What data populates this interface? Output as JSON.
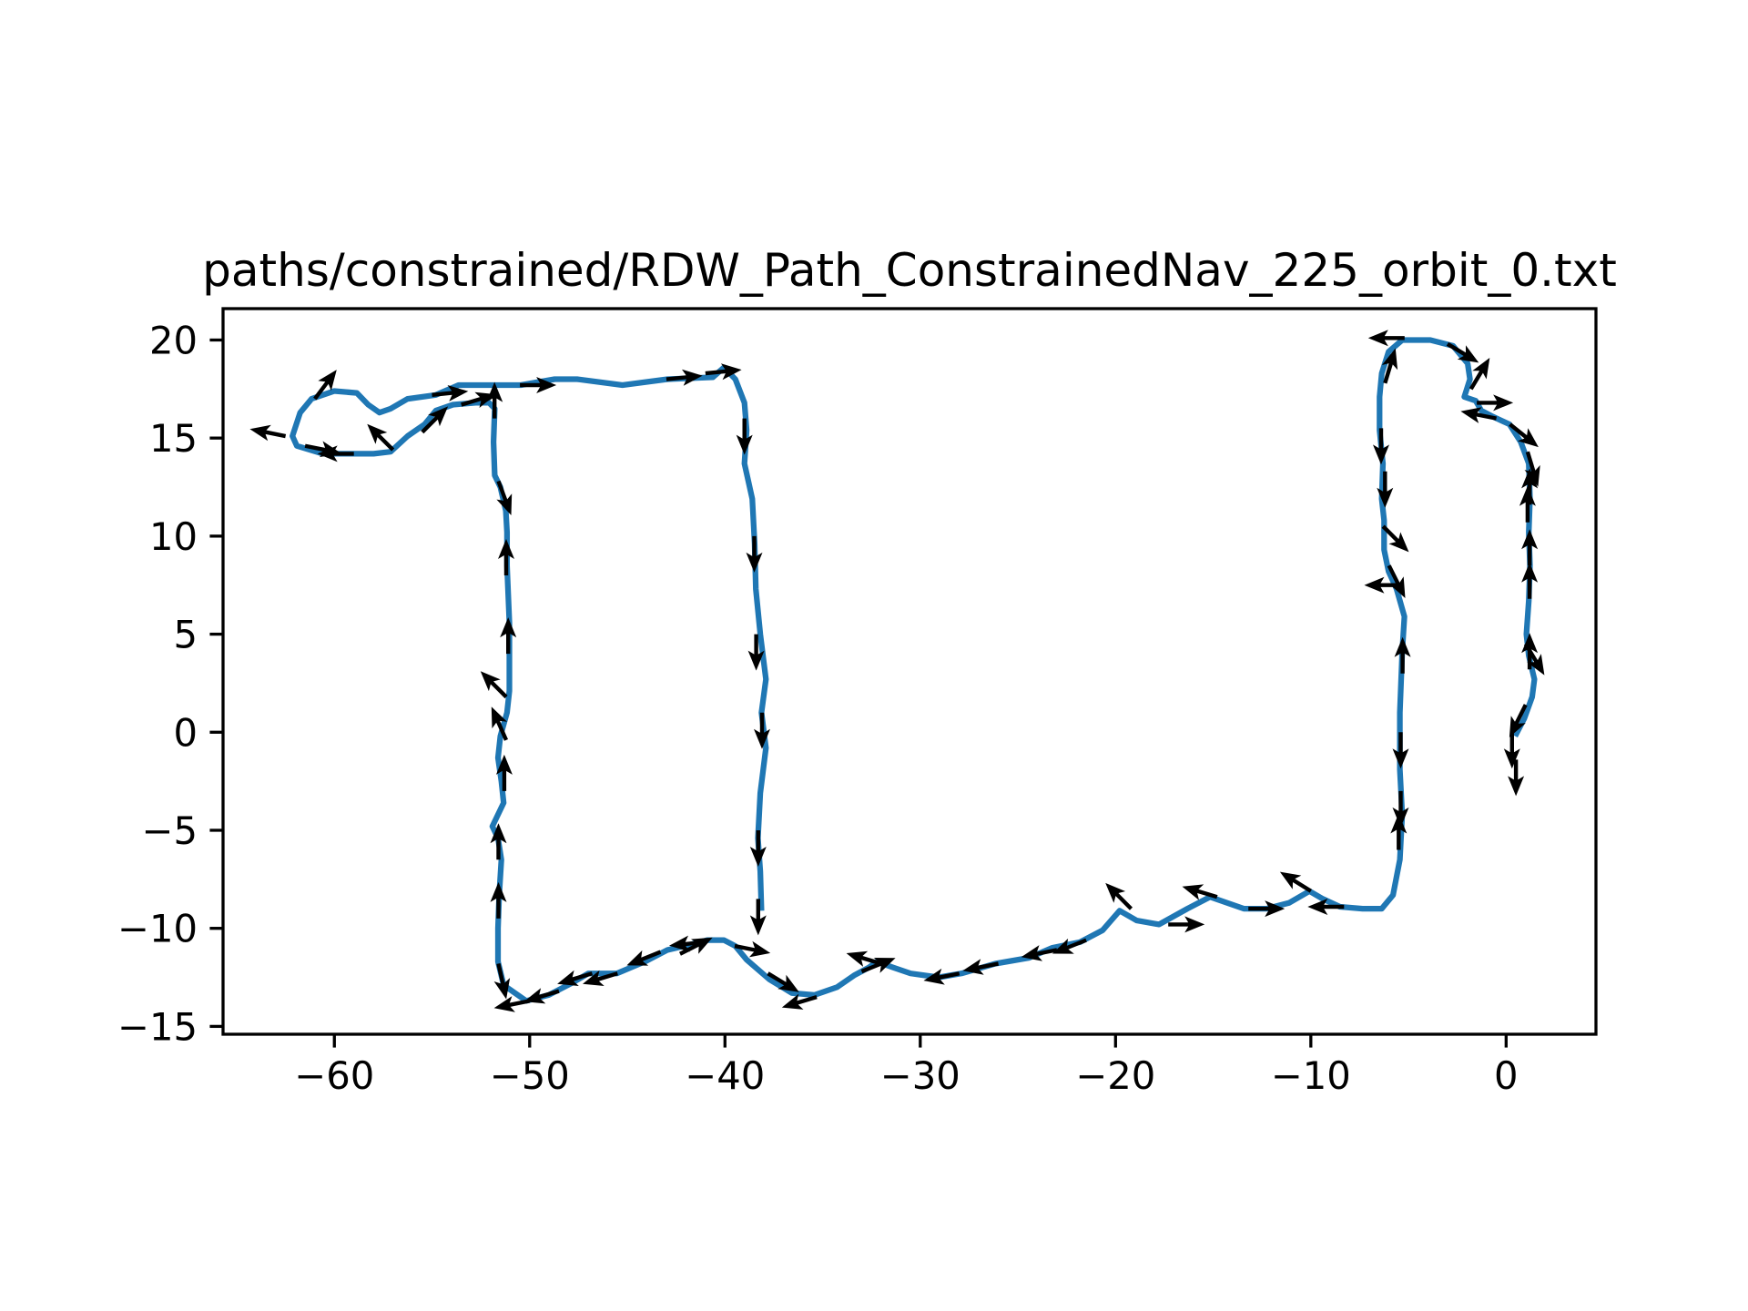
{
  "chart_data": {
    "type": "line",
    "title": "paths/constrained/RDW_Path_ConstrainedNav_225_orbit_0.txt",
    "xlim": [
      -65.7,
      4.6
    ],
    "ylim": [
      -15.4,
      21.6
    ],
    "xticks": [
      {
        "value": -60,
        "label": "−60"
      },
      {
        "value": -50,
        "label": "−50"
      },
      {
        "value": -40,
        "label": "−40"
      },
      {
        "value": -30,
        "label": "−30"
      },
      {
        "value": -20,
        "label": "−20"
      },
      {
        "value": -10,
        "label": "−10"
      },
      0
    ],
    "yticks": [
      {
        "value": -15,
        "label": "−15"
      },
      {
        "value": -10,
        "label": "−10"
      },
      {
        "value": -5,
        "label": "−5"
      },
      0,
      5,
      10,
      15,
      20
    ],
    "grid": false,
    "color": "#1f77b4",
    "x": [
      0.46,
      0.93,
      1.33,
      1.45,
      1.16,
      1.04,
      1.16,
      1.22,
      1.16,
      1.22,
      1.16,
      0.75,
      0.17,
      -0.69,
      -1.27,
      -1.56,
      -2.14,
      -1.85,
      -1.97,
      -2.72,
      -3.88,
      -5.32,
      -6.02,
      -6.37,
      -6.48,
      -6.48,
      -6.31,
      -6.37,
      -6.25,
      -6.25,
      -6.02,
      -5.61,
      -5.21,
      -5.32,
      -5.44,
      -5.44,
      -5.32,
      -5.44,
      -5.79,
      -6.37,
      -7.35,
      -8.51,
      -9.38,
      -10.07,
      -11.11,
      -12.27,
      -13.43,
      -14.29,
      -15.16,
      -16.32,
      -17.77,
      -18.92,
      -19.79,
      -20.66,
      -21.82,
      -23.26,
      -24.42,
      -26.16,
      -27.89,
      -29.05,
      -30.5,
      -31.37,
      -32.23,
      -32.64,
      -33.39,
      -34.26,
      -35.42,
      -36.57,
      -37.73,
      -38.89,
      -39.47,
      -40.05,
      -40.91,
      -42.07,
      -42.94,
      -44.1,
      -45.54,
      -46.99,
      -47.86,
      -49.02,
      -50.17,
      -51.33,
      -51.62,
      -51.62,
      -51.56,
      -51.45,
      -51.62,
      -51.91,
      -51.33,
      -51.45,
      -51.62,
      -51.5,
      -51.16,
      -51.04,
      -51.04,
      -51.04,
      -51.16,
      -51.16,
      -51.22,
      -51.5,
      -51.79,
      -51.85,
      -51.79,
      -52.08,
      -52.77,
      -53.93,
      -54.8,
      -55.38,
      -56.25,
      -57.12,
      -57.99,
      -59.14,
      -60.59,
      -61.92,
      -62.15,
      -61.75,
      -61.17,
      -60.01,
      -58.85,
      -58.27,
      -57.69,
      -57.12,
      -56.25,
      -54.8,
      -53.64,
      -50.46,
      -48.72,
      -47.57,
      -45.25,
      -42.94,
      -40.62,
      -40.05,
      -39.47,
      -39.0,
      -38.89,
      -39.0,
      -38.6,
      -38.48,
      -38.42,
      -38.19,
      -37.9,
      -38.13,
      -37.9,
      -38.19,
      -38.31,
      -38.19,
      -38.13
    ],
    "y": [
      -0.2,
      0.7,
      1.8,
      2.7,
      3.9,
      5.0,
      6.7,
      8.5,
      10.2,
      11.9,
      13.7,
      14.8,
      15.7,
      16.1,
      16.4,
      16.9,
      17.1,
      18.0,
      18.8,
      19.7,
      20.0,
      20.0,
      19.4,
      18.3,
      17.1,
      15.4,
      13.7,
      11.9,
      10.8,
      9.3,
      8.2,
      7.3,
      5.9,
      4.1,
      1.0,
      -1.9,
      -4.2,
      -6.5,
      -8.3,
      -9.0,
      -9.0,
      -8.9,
      -8.5,
      -8.1,
      -8.7,
      -9.0,
      -9.0,
      -8.7,
      -8.4,
      -9.0,
      -9.8,
      -9.6,
      -9.1,
      -10.1,
      -10.7,
      -11.0,
      -11.5,
      -11.8,
      -12.3,
      -12.5,
      -12.3,
      -12.0,
      -11.7,
      -12.0,
      -12.4,
      -13.0,
      -13.4,
      -13.3,
      -12.6,
      -11.6,
      -10.9,
      -10.6,
      -10.6,
      -10.9,
      -11.1,
      -11.7,
      -12.3,
      -12.3,
      -12.8,
      -13.4,
      -13.7,
      -12.9,
      -11.7,
      -10.0,
      -8.3,
      -6.5,
      -5.4,
      -4.8,
      -3.6,
      -2.5,
      -1.3,
      -0.2,
      1.0,
      2.1,
      3.9,
      5.6,
      8.5,
      10.2,
      11.3,
      12.5,
      13.1,
      14.8,
      16.5,
      16.8,
      16.8,
      16.7,
      16.4,
      15.7,
      15.1,
      14.3,
      14.2,
      14.2,
      14.2,
      14.6,
      15.1,
      16.3,
      17.0,
      17.4,
      17.3,
      16.7,
      16.3,
      16.5,
      17.0,
      17.2,
      17.7,
      17.7,
      18.0,
      18.0,
      17.7,
      18.0,
      18.1,
      18.6,
      18.0,
      16.8,
      15.4,
      13.7,
      11.9,
      9.6,
      7.3,
      5.0,
      2.7,
      1.0,
      -0.8,
      -3.1,
      -5.4,
      -7.1,
      -9.1
    ],
    "arrows": {
      "color": "#000000",
      "x": [
        -38.3,
        -38.3,
        -38.1,
        -38.4,
        -38.5,
        -39,
        -41,
        -43,
        -50.5,
        -55,
        -61,
        -62.5,
        -61.5,
        -59,
        -57,
        -55.5,
        -53.5,
        -51.8,
        -51.6,
        -51.2,
        -51.1,
        -51.2,
        -51.2,
        -51.3,
        -51.6,
        -51.6,
        -51.6,
        -50,
        -48.5,
        -46.8,
        -45.5,
        -43.3,
        -42.3,
        -41,
        -39.5,
        -37.8,
        -35.3,
        -33,
        -32,
        -28,
        -26,
        -23,
        -21.5,
        -19.2,
        -17.3,
        -14.8,
        -13.2,
        -10,
        -8.3,
        -5.5,
        -5.4,
        -5.4,
        -5.3,
        -5.4,
        -6,
        -6.3,
        -6.2,
        -6.4,
        -6.2,
        -5.2,
        -3,
        -1.8,
        -1.5,
        -0.5,
        0.2,
        1.1,
        1.2,
        1.1,
        1.2,
        1.2,
        1.0,
        1.2,
        1.0,
        0.3,
        0.5
      ],
      "y": [
        -8.5,
        -5,
        1,
        5,
        10,
        16,
        18.3,
        18,
        17.7,
        17.2,
        17,
        15.1,
        14.6,
        14.2,
        14.4,
        15.3,
        16.7,
        16,
        12.8,
        8,
        4,
        1.8,
        -0.4,
        -3,
        -6.5,
        -9.5,
        -11.8,
        -13.7,
        -13.2,
        -12.3,
        -12.3,
        -11.2,
        -11.3,
        -10.7,
        -10.9,
        -12.3,
        -13.5,
        -12.2,
        -11.8,
        -12.3,
        -11.8,
        -11.1,
        -10.6,
        -9,
        -9.8,
        -8.4,
        -9,
        -8.1,
        -8.9,
        -6,
        -3,
        0,
        3,
        7.5,
        8.5,
        10.5,
        13.3,
        15.5,
        17.8,
        20.1,
        19.8,
        17.5,
        16.8,
        16,
        15.7,
        14.3,
        11.6,
        10.7,
        8.5,
        6.8,
        4.5,
        3.2,
        1.4,
        0,
        -1.4
      ],
      "u": [
        0,
        0,
        0,
        0,
        0,
        0,
        1,
        1,
        1,
        1,
        0.6,
        -1,
        1,
        -1,
        -0.7,
        0.7,
        1,
        0,
        0.3,
        0,
        0,
        -0.6,
        -0.4,
        0,
        0,
        0,
        0.2,
        -1,
        -1,
        -1,
        -1,
        -1,
        1,
        -1,
        1,
        1,
        -1,
        1,
        -1,
        -1,
        -1,
        -1,
        -1,
        -0.7,
        1,
        -1,
        1,
        -0.8,
        -1,
        0,
        0,
        0,
        0,
        -1,
        0.5,
        0.6,
        0,
        0,
        0.3,
        -1,
        1,
        0.6,
        1,
        -1,
        1,
        0.3,
        0,
        0,
        0,
        0,
        0.6,
        0,
        -0.5,
        0,
        0
      ],
      "v": [
        -1,
        -1,
        -1,
        -1,
        -1,
        -1,
        0.1,
        0.1,
        0,
        0.1,
        0.8,
        0.2,
        -0.2,
        0,
        0.7,
        0.7,
        0.3,
        1,
        -0.8,
        1,
        1,
        0.6,
        0.9,
        1,
        1,
        1,
        -0.9,
        -0.2,
        -0.3,
        -0.3,
        -0.3,
        -0.4,
        0.5,
        -0.1,
        -0.2,
        -0.6,
        -0.3,
        0.4,
        0.3,
        -0.2,
        -0.2,
        -0.2,
        -0.4,
        0.7,
        0,
        0.3,
        0,
        0.5,
        0,
        1,
        -1,
        -1,
        1,
        0,
        -1,
        -0.6,
        -1,
        -1,
        1,
        0,
        -0.6,
        1,
        0,
        0.2,
        -0.8,
        -1,
        1,
        1,
        1,
        1,
        -1,
        1,
        -1,
        -1,
        -1
      ]
    }
  }
}
